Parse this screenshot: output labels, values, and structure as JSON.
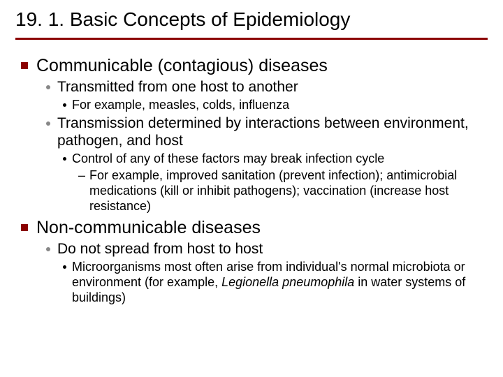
{
  "colors": {
    "accent": "#8b0000",
    "text": "#000000",
    "bullet_gray": "#878787",
    "background": "#ffffff"
  },
  "title": "19. 1. Basic Concepts of Epidemiology",
  "sections": [
    {
      "heading": "Communicable (contagious) diseases",
      "items": [
        {
          "text": "Transmitted from one host to another",
          "sub": [
            {
              "text": "For example, measles, colds, influenza"
            }
          ]
        },
        {
          "text": "Transmission determined by interactions between environment, pathogen, and host",
          "sub": [
            {
              "text": "Control of any of these factors may break infection cycle",
              "subsub": [
                {
                  "text": "For example, improved sanitation (prevent infection); antimicrobial medications (kill or inhibit pathogens); vaccination (increase host resistance)"
                }
              ]
            }
          ]
        }
      ]
    },
    {
      "heading": "Non-communicable diseases",
      "items": [
        {
          "text": "Do not spread from host to host",
          "sub": [
            {
              "html": "Microorganisms most often arise from individual's normal microbiota or environment (for example, <span class=\"italic\">Legionella pneumophila</span> in water systems of buildings)"
            }
          ]
        }
      ]
    }
  ]
}
